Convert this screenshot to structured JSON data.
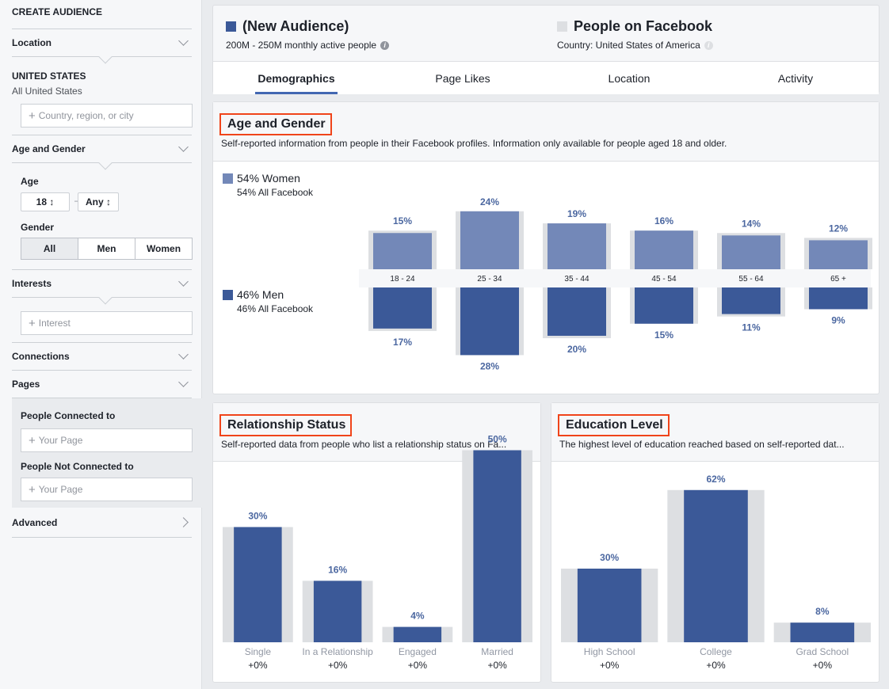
{
  "sidebar": {
    "title": "CREATE AUDIENCE",
    "location": {
      "label": "Location",
      "selected_heading": "UNITED STATES",
      "selected_sub": "All United States",
      "placeholder": "Country, region, or city"
    },
    "age_gender": {
      "label": "Age and Gender",
      "age_label": "Age",
      "age_from": "18 ↕",
      "age_to": "Any ↕",
      "dash": "—",
      "gender_label": "Gender",
      "gender_options": [
        "All",
        "Men",
        "Women"
      ],
      "gender_selected": "All"
    },
    "interests": {
      "label": "Interests",
      "placeholder": "Interest"
    },
    "connections": {
      "label": "Connections"
    },
    "pages": {
      "label": "Pages",
      "connected_label": "People Connected to",
      "connected_placeholder": "Your Page",
      "not_connected_label": "People Not Connected to",
      "not_connected_placeholder": "Your Page"
    },
    "advanced": {
      "label": "Advanced"
    }
  },
  "header": {
    "audience": {
      "name": "(New Audience)",
      "color": "#3b5998",
      "subtitle": "200M - 250M monthly active people"
    },
    "compare": {
      "name": "People on Facebook",
      "color": "#dddfe2",
      "subtitle": "Country: United States of America"
    },
    "tabs": [
      "Demographics",
      "Page Likes",
      "Location",
      "Activity"
    ],
    "active_tab": "Demographics"
  },
  "age_gender_section": {
    "title": "Age and Gender",
    "description": "Self-reported information from people in their Facebook profiles. Information only available for people aged 18 and older.",
    "women_legend": "54% Women",
    "women_sub": "54% All Facebook",
    "men_legend": "46% Men",
    "men_sub": "46% All Facebook"
  },
  "relationship_section": {
    "title": "Relationship Status",
    "description": "Self-reported data from people who list a relationship status on Fa..."
  },
  "education_section": {
    "title": "Education Level",
    "description": "The highest level of education reached based on self-reported dat..."
  },
  "colors": {
    "women": "#7388b8",
    "men": "#3b5998",
    "baseline": "#dddfe2",
    "value_label": "#4b67a0",
    "highlight": "#f0441a"
  },
  "chart_data": [
    {
      "type": "bar",
      "categories": [
        "18 - 24",
        "25 - 34",
        "35 - 44",
        "45 - 54",
        "55 - 64",
        "65 +"
      ],
      "series": [
        {
          "name": "Women",
          "values": [
            15,
            24,
            19,
            16,
            14,
            12
          ],
          "labels": [
            "15%",
            "24%",
            "19%",
            "16%",
            "14%",
            "12%"
          ]
        },
        {
          "name": "Men",
          "values": [
            17,
            28,
            20,
            15,
            11,
            9
          ],
          "labels": [
            "17%",
            "28%",
            "20%",
            "15%",
            "11%",
            "9%"
          ]
        }
      ],
      "baseline_women": [
        16,
        24,
        19,
        16,
        15,
        13
      ],
      "baseline_men": [
        18,
        28,
        21,
        15,
        12,
        9
      ]
    },
    {
      "type": "bar",
      "categories": [
        "Single",
        "In a Relationship",
        "Engaged",
        "Married"
      ],
      "values": [
        30,
        16,
        4,
        50
      ],
      "labels": [
        "30%",
        "16%",
        "4%",
        "50%"
      ],
      "baseline": [
        30,
        16,
        4,
        50
      ],
      "changes": [
        "+0%",
        "+0%",
        "+0%",
        "+0%"
      ]
    },
    {
      "type": "bar",
      "categories": [
        "High School",
        "College",
        "Grad School"
      ],
      "values": [
        30,
        62,
        8
      ],
      "labels": [
        "30%",
        "62%",
        "8%"
      ],
      "baseline": [
        30,
        62,
        8
      ],
      "changes": [
        "+0%",
        "+0%",
        "+0%"
      ]
    }
  ]
}
